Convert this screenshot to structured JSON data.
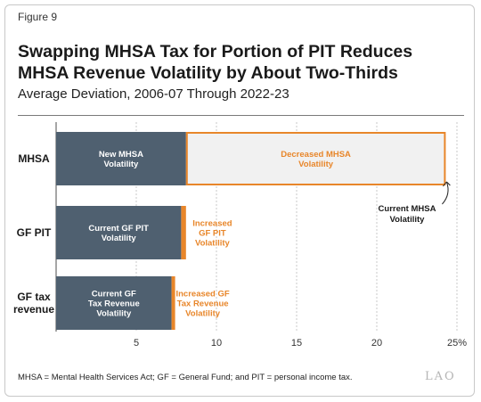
{
  "figure_label": "Figure 9",
  "title_line1": "Swapping MHSA Tax for Portion of PIT Reduces",
  "title_line2": "MHSA Revenue Volatility by About Two-Thirds",
  "subtitle": "Average Deviation, 2006-07 Through 2022-23",
  "footnote": "MHSA = Mental Health Services Act; GF = General Fund; and PIT = personal income tax.",
  "logo": "LAO",
  "colors": {
    "base": "#4f6070",
    "increase": "#e8862a",
    "decrease_fill": "#f1f1f1",
    "decrease_border": "#e8862a"
  },
  "chart_data": {
    "type": "bar",
    "orientation": "horizontal",
    "stacked": true,
    "categories": [
      [
        "MHSA"
      ],
      [
        "GF PIT"
      ],
      [
        "GF tax",
        "revenue"
      ]
    ],
    "series": [
      {
        "values": [
          8.1,
          7.8,
          7.2
        ],
        "labels": [
          [
            "New MHSA",
            "Volatility"
          ],
          [
            "Current GF PIT",
            "Volatility"
          ],
          [
            "Current GF",
            "Tax Revenue",
            "Volatility"
          ]
        ]
      },
      {
        "values": [
          16.2,
          0.3,
          0.2
        ],
        "labels": [
          [
            "Decreased MHSA",
            "Volatility"
          ],
          [
            "Increased",
            "GF PIT",
            "Volatility"
          ],
          [
            "Increased GF",
            "Tax Revenue",
            "Volatility"
          ]
        ]
      }
    ],
    "xticks": [
      "5",
      "10",
      "15",
      "20",
      "25%"
    ],
    "xtick_values": [
      5,
      10,
      15,
      20,
      25
    ],
    "xlim": [
      0,
      25
    ],
    "annotation": [
      "Current MHSA",
      "Volatility"
    ],
    "grid": "vertical dashed"
  }
}
